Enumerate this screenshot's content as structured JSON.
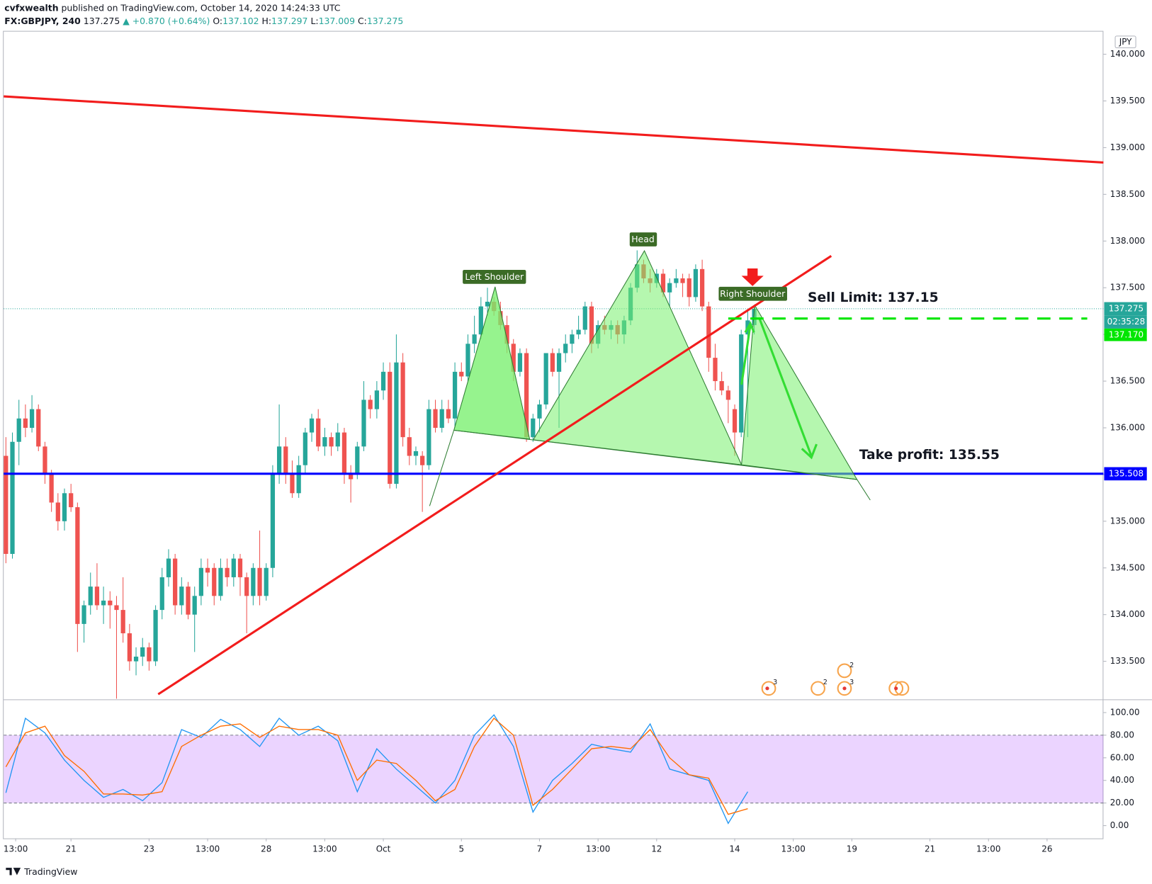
{
  "chart_data": {
    "type": "candlestick",
    "author": "cvfxwealth",
    "published": "published on TradingView.com, October 14, 2020 14:24:33 UTC",
    "symbol": "FX:GBPJPY, 240",
    "last": 137.275,
    "change": "▲ +0.870 (+0.64%)",
    "ohlc_header": [
      {
        "key": "O:",
        "value": 137.102
      },
      {
        "key": "H:",
        "value": 137.297
      },
      {
        "key": "L:",
        "value": 137.009
      },
      {
        "key": "C:",
        "value": 137.275
      }
    ],
    "currency": "JPY",
    "up_color": "#26a69a",
    "down_color": "#ef5350",
    "xlim": [
      0,
      169
    ],
    "xticks": [
      {
        "value": 1.5,
        "label": "13:00"
      },
      {
        "value": 10,
        "label": "21"
      },
      {
        "value": 22,
        "label": "23"
      },
      {
        "value": 31,
        "label": "13:00"
      },
      {
        "value": 40,
        "label": "28"
      },
      {
        "value": 49,
        "label": "13:00"
      },
      {
        "value": 58,
        "label": "Oct"
      },
      {
        "value": 70,
        "label": "5"
      },
      {
        "value": 82,
        "label": "7"
      },
      {
        "value": 91,
        "label": "13:00"
      },
      {
        "value": 100,
        "label": "12"
      },
      {
        "value": 112,
        "label": "14"
      },
      {
        "value": 121,
        "label": "13:00"
      },
      {
        "value": 130,
        "label": "19"
      },
      {
        "value": 142,
        "label": "21"
      },
      {
        "value": 151,
        "label": "13:00"
      },
      {
        "value": 160,
        "label": "26"
      }
    ],
    "ylim": [
      133.1,
      140.25
    ],
    "yticks": [
      {
        "value": 133.5,
        "label": "133.500"
      },
      {
        "value": 134,
        "label": "134.000"
      },
      {
        "value": 134.5,
        "label": "134.500"
      },
      {
        "value": 135,
        "label": "135.000"
      },
      {
        "value": 135.5,
        "label": "135.500"
      },
      {
        "value": 136,
        "label": "136.000"
      },
      {
        "value": 136.5,
        "label": "136.500"
      },
      {
        "value": 137,
        "label": "137.000"
      },
      {
        "value": 137.5,
        "label": "137.500"
      },
      {
        "value": 138,
        "label": "138.000"
      },
      {
        "value": 138.5,
        "label": "138.500"
      },
      {
        "value": 139,
        "label": "139.000"
      },
      {
        "value": 139.5,
        "label": "139.500"
      },
      {
        "value": 140,
        "label": "140.000"
      }
    ],
    "ohlc": [
      [
        135.7,
        135.9,
        134.55,
        134.65
      ],
      [
        134.65,
        135.95,
        134.6,
        135.85
      ],
      [
        135.85,
        136.3,
        135.6,
        136.1
      ],
      [
        136.1,
        136.25,
        135.9,
        136.0
      ],
      [
        136.0,
        136.35,
        135.95,
        136.2
      ],
      [
        136.2,
        136.25,
        135.75,
        135.8
      ],
      [
        135.8,
        135.85,
        135.4,
        135.5
      ],
      [
        135.5,
        135.55,
        135.1,
        135.2
      ],
      [
        135.2,
        135.3,
        134.9,
        135.0
      ],
      [
        135.0,
        135.35,
        134.9,
        135.3
      ],
      [
        135.3,
        135.4,
        135.1,
        135.15
      ],
      [
        135.15,
        135.2,
        133.6,
        133.9
      ],
      [
        133.9,
        134.15,
        133.7,
        134.1
      ],
      [
        134.1,
        134.45,
        134.0,
        134.3
      ],
      [
        134.3,
        134.55,
        134.05,
        134.1
      ],
      [
        134.1,
        134.3,
        133.9,
        134.15
      ],
      [
        134.15,
        134.25,
        133.85,
        134.1
      ],
      [
        134.1,
        134.2,
        133.1,
        134.05
      ],
      [
        134.05,
        134.4,
        133.7,
        133.8
      ],
      [
        133.8,
        133.9,
        133.4,
        133.5
      ],
      [
        133.5,
        133.65,
        133.35,
        133.55
      ],
      [
        133.55,
        133.75,
        133.45,
        133.65
      ],
      [
        133.65,
        133.7,
        133.4,
        133.5
      ],
      [
        133.5,
        134.1,
        133.45,
        134.05
      ],
      [
        134.05,
        134.5,
        133.95,
        134.4
      ],
      [
        134.4,
        134.7,
        134.3,
        134.6
      ],
      [
        134.6,
        134.65,
        134.0,
        134.1
      ],
      [
        134.1,
        134.4,
        134.0,
        134.3
      ],
      [
        134.3,
        134.35,
        133.95,
        134.0
      ],
      [
        134.0,
        134.3,
        133.6,
        134.2
      ],
      [
        134.2,
        134.6,
        134.1,
        134.5
      ],
      [
        134.5,
        134.6,
        134.3,
        134.45
      ],
      [
        134.5,
        134.55,
        134.1,
        134.2
      ],
      [
        134.2,
        134.6,
        134.15,
        134.5
      ],
      [
        134.5,
        134.6,
        134.3,
        134.4
      ],
      [
        134.4,
        134.65,
        134.3,
        134.6
      ],
      [
        134.6,
        134.65,
        134.2,
        134.4
      ],
      [
        134.4,
        134.45,
        133.8,
        134.2
      ],
      [
        134.2,
        134.55,
        134.1,
        134.5
      ],
      [
        134.5,
        134.9,
        134.1,
        134.2
      ],
      [
        134.2,
        134.55,
        134.15,
        134.5
      ],
      [
        134.5,
        135.6,
        134.4,
        135.5
      ],
      [
        135.5,
        136.25,
        135.4,
        135.8
      ],
      [
        135.8,
        135.9,
        135.4,
        135.5
      ],
      [
        135.5,
        135.65,
        135.25,
        135.3
      ],
      [
        135.3,
        135.7,
        135.25,
        135.6
      ],
      [
        135.6,
        136.0,
        135.5,
        135.95
      ],
      [
        135.95,
        136.15,
        135.85,
        136.1
      ],
      [
        136.1,
        136.2,
        135.75,
        135.8
      ],
      [
        135.8,
        136.0,
        135.7,
        135.9
      ],
      [
        135.9,
        135.95,
        135.7,
        135.8
      ],
      [
        135.8,
        136.05,
        135.75,
        135.95
      ],
      [
        135.95,
        136.0,
        135.4,
        135.5
      ],
      [
        135.5,
        135.6,
        135.2,
        135.45
      ],
      [
        135.5,
        135.85,
        135.45,
        135.8
      ],
      [
        135.8,
        136.5,
        135.75,
        136.3
      ],
      [
        136.3,
        136.35,
        136.1,
        136.2
      ],
      [
        136.2,
        136.5,
        136.1,
        136.4
      ],
      [
        136.4,
        136.7,
        136.3,
        136.6
      ],
      [
        136.6,
        136.7,
        135.35,
        135.4
      ],
      [
        135.4,
        137.0,
        135.35,
        136.7
      ],
      [
        136.7,
        136.8,
        135.8,
        135.9
      ],
      [
        135.9,
        136.0,
        135.6,
        135.7
      ],
      [
        135.7,
        135.8,
        135.6,
        135.75
      ],
      [
        135.7,
        135.75,
        135.1,
        135.6
      ],
      [
        135.6,
        136.3,
        135.55,
        136.2
      ],
      [
        136.2,
        136.3,
        135.95,
        136.0
      ],
      [
        136.0,
        136.3,
        135.95,
        136.2
      ],
      [
        136.2,
        136.3,
        136.05,
        136.1
      ],
      [
        136.1,
        136.7,
        136.0,
        136.6
      ],
      [
        136.6,
        136.7,
        136.5,
        136.55
      ],
      [
        136.55,
        137.0,
        136.5,
        136.9
      ],
      [
        136.9,
        137.2,
        136.8,
        137.0
      ],
      [
        137.0,
        137.4,
        136.95,
        137.3
      ],
      [
        137.3,
        137.5,
        137.2,
        137.35
      ],
      [
        137.35,
        137.4,
        137.2,
        137.25
      ],
      [
        137.25,
        137.35,
        137.05,
        137.1
      ],
      [
        137.1,
        137.2,
        136.8,
        136.9
      ],
      [
        136.9,
        136.95,
        136.5,
        136.6
      ],
      [
        136.6,
        136.85,
        136.55,
        136.8
      ],
      [
        136.8,
        136.85,
        135.85,
        135.9
      ],
      [
        135.9,
        136.15,
        135.85,
        136.1
      ],
      [
        136.1,
        136.3,
        135.95,
        136.25
      ],
      [
        136.25,
        136.8,
        136.2,
        136.8
      ],
      [
        136.8,
        136.85,
        136.55,
        136.6
      ],
      [
        136.6,
        136.85,
        136.0,
        136.8
      ],
      [
        136.8,
        137.0,
        136.7,
        136.9
      ],
      [
        136.9,
        137.05,
        136.8,
        137.0
      ],
      [
        137.0,
        137.2,
        136.95,
        137.05
      ],
      [
        137.05,
        137.35,
        137.0,
        137.3
      ],
      [
        137.3,
        137.35,
        136.8,
        136.9
      ],
      [
        136.9,
        137.15,
        136.85,
        137.1
      ],
      [
        137.1,
        137.2,
        137.0,
        137.05
      ],
      [
        137.05,
        137.15,
        136.95,
        137.1
      ],
      [
        137.1,
        137.15,
        136.9,
        137.0
      ],
      [
        137.0,
        137.2,
        136.9,
        137.15
      ],
      [
        137.15,
        137.55,
        137.1,
        137.5
      ],
      [
        137.5,
        137.9,
        137.45,
        137.75
      ],
      [
        137.75,
        137.8,
        137.55,
        137.6
      ],
      [
        137.6,
        137.7,
        137.45,
        137.55
      ],
      [
        137.55,
        137.7,
        137.5,
        137.65
      ],
      [
        137.65,
        137.7,
        137.4,
        137.45
      ],
      [
        137.45,
        137.6,
        137.3,
        137.55
      ],
      [
        137.55,
        137.7,
        137.5,
        137.6
      ],
      [
        137.6,
        137.65,
        137.4,
        137.55
      ],
      [
        137.6,
        137.65,
        137.3,
        137.4
      ],
      [
        137.4,
        137.75,
        137.35,
        137.7
      ],
      [
        137.7,
        137.8,
        137.25,
        137.3
      ],
      [
        137.3,
        137.35,
        136.6,
        136.75
      ],
      [
        136.75,
        136.9,
        136.4,
        136.5
      ],
      [
        136.5,
        136.6,
        136.35,
        136.4
      ],
      [
        136.4,
        136.45,
        136.05,
        136.3
      ],
      [
        136.2,
        136.25,
        135.7,
        135.95
      ],
      [
        135.95,
        137.05,
        135.9,
        137.0
      ],
      [
        137.0,
        137.25,
        135.9,
        137.15
      ],
      [
        137.1,
        137.3,
        137.0,
        137.275
      ]
    ],
    "last_price_tag": 137.275,
    "countdown": "02:35:28",
    "sell_line": {
      "value": 137.17,
      "label": "137.170",
      "color": "#00e600"
    },
    "support_line": {
      "value": 135.508,
      "color": "#0000ff"
    },
    "annotations": [
      "Left Shoulder",
      "Head",
      "Right Shoulder",
      "Sell Limit: 137.15",
      "Take profit: 135.55"
    ],
    "event_counts": [
      3,
      2,
      2,
      3
    ],
    "stochastic": {
      "ylim": [
        -10,
        111
      ],
      "yticks": [
        {
          "value": 0,
          "label": "0.00"
        },
        {
          "value": 20,
          "label": "20.00"
        },
        {
          "value": 40,
          "label": "40.00"
        },
        {
          "value": 60,
          "label": "60.00"
        },
        {
          "value": 80,
          "label": "80.00"
        },
        {
          "value": 100,
          "label": "100.00"
        }
      ],
      "band": [
        20,
        80
      ],
      "x": [
        0,
        3,
        6,
        9,
        12,
        15,
        18,
        21,
        24,
        27,
        30,
        33,
        36,
        39,
        42,
        45,
        48,
        51,
        54,
        57,
        60,
        63,
        66,
        69,
        72,
        75,
        78,
        81,
        84,
        87,
        90,
        93,
        96,
        99,
        102,
        105,
        108,
        111,
        114
      ],
      "series": [
        {
          "color": "#2196f3",
          "values": [
            29,
            95,
            82,
            58,
            40,
            25,
            32,
            22,
            38,
            85,
            78,
            94,
            85,
            70,
            95,
            80,
            88,
            75,
            30,
            68,
            50,
            35,
            20,
            40,
            80,
            98,
            70,
            12,
            40,
            55,
            72,
            68,
            65,
            90,
            50,
            45,
            40,
            2,
            30
          ]
        },
        {
          "color": "#ff6d00",
          "values": [
            52,
            82,
            88,
            62,
            48,
            28,
            28,
            27,
            30,
            70,
            80,
            88,
            90,
            78,
            88,
            85,
            85,
            80,
            40,
            58,
            55,
            40,
            22,
            32,
            70,
            95,
            80,
            18,
            32,
            50,
            68,
            70,
            68,
            85,
            60,
            45,
            42,
            10,
            15
          ]
        }
      ]
    },
    "footer": "TradingView"
  }
}
